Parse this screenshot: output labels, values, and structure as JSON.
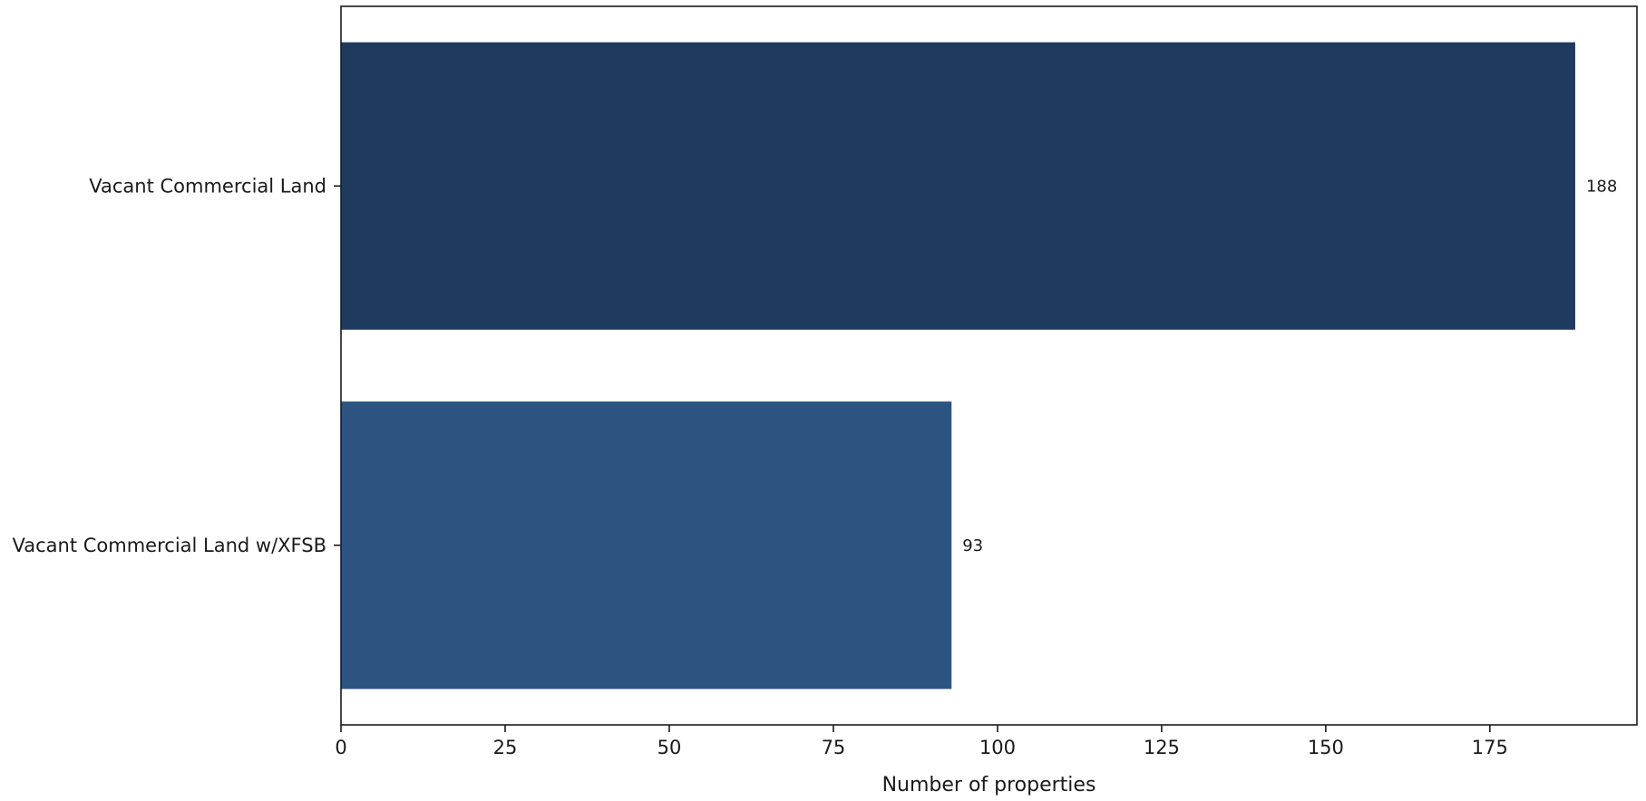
{
  "chart_data": {
    "type": "bar",
    "orientation": "horizontal",
    "title": "",
    "xlabel": "Number of properties",
    "ylabel": "",
    "categories": [
      "Vacant Commercial Land",
      "Vacant Commercial Land w/XFSB"
    ],
    "values": [
      188,
      93
    ],
    "value_labels": [
      "188",
      "93"
    ],
    "colors": [
      "#1f3a5f",
      "#2d5381"
    ],
    "xlim": [
      0,
      197.4
    ],
    "xticks": [
      0,
      25,
      50,
      75,
      100,
      125,
      150,
      175
    ],
    "xtick_labels": [
      "0",
      "25",
      "50",
      "75",
      "100",
      "125",
      "150",
      "175"
    ],
    "grid": false,
    "legend": "none"
  }
}
